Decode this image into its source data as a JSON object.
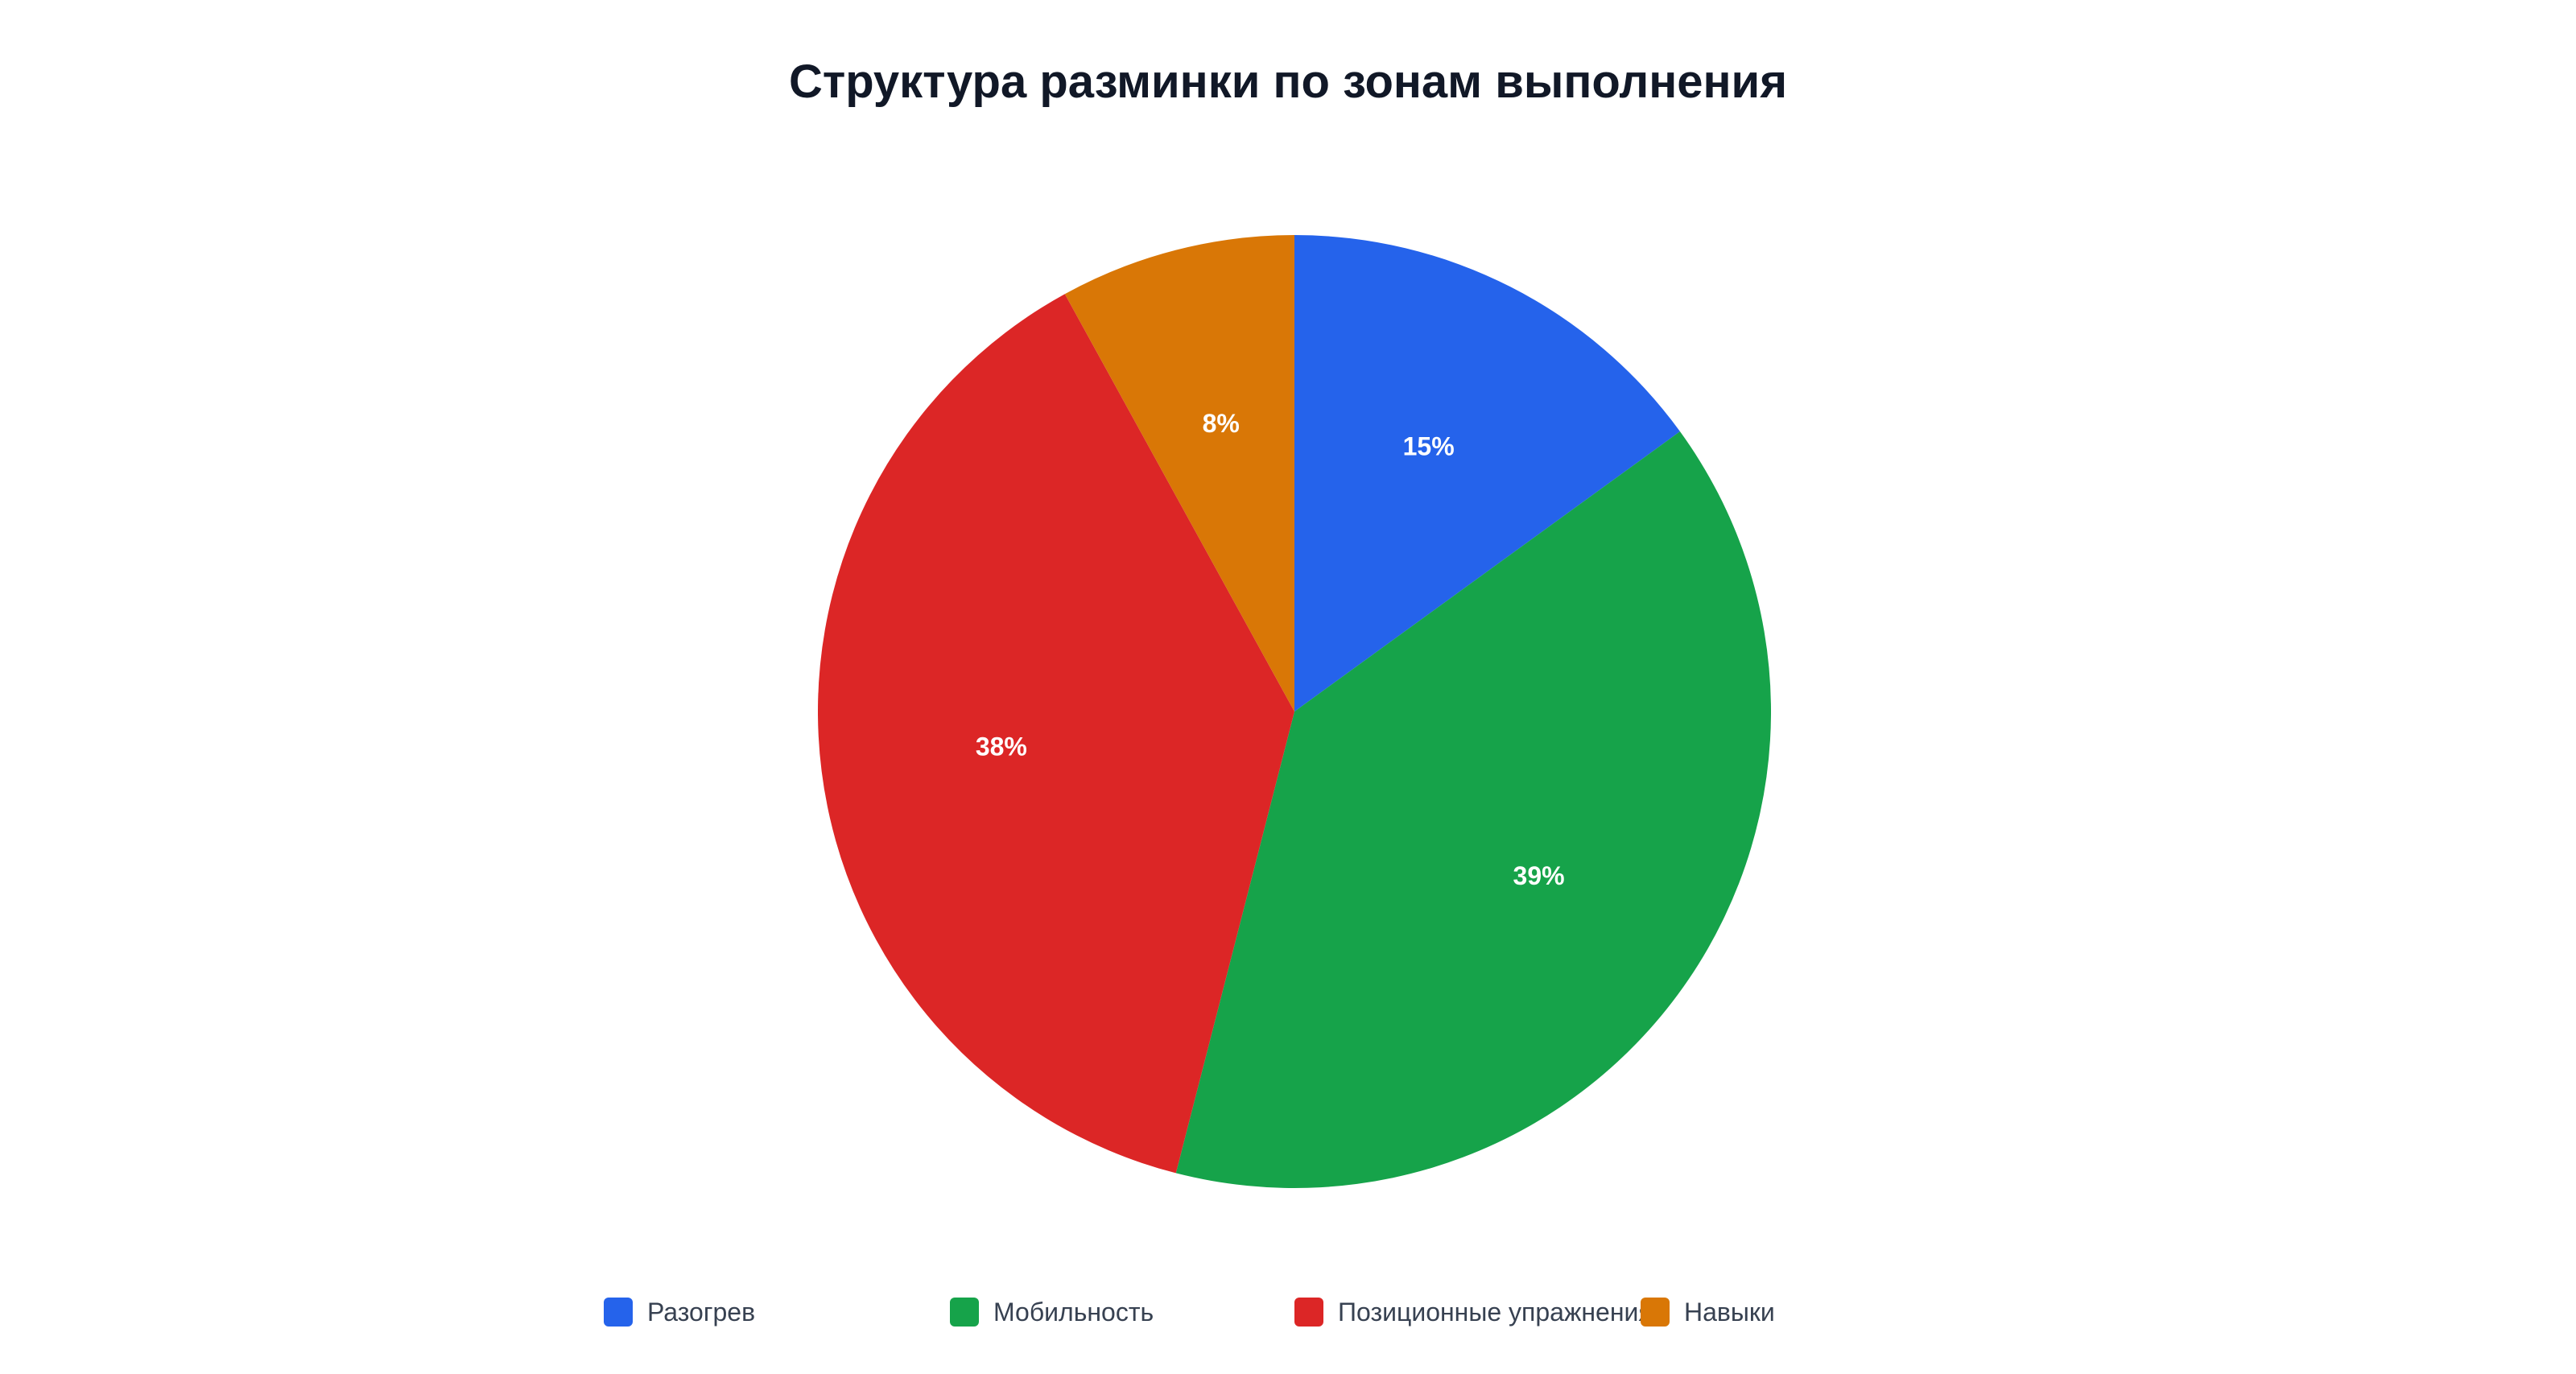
{
  "chart_data": {
    "type": "pie",
    "title": "Структура разминки по зонам выполнения",
    "categories": [
      "Разогрев",
      "Мобильность",
      "Позиционные упражнения",
      "Навыки"
    ],
    "values": [
      15,
      39,
      38,
      8
    ],
    "value_labels": [
      "15%",
      "39%",
      "38%",
      "8%"
    ],
    "colors": [
      "#2563eb",
      "#16a34a",
      "#dc2626",
      "#d97706"
    ],
    "legend_position": "bottom",
    "start_angle": "top, clockwise"
  },
  "legend": {
    "items": [
      {
        "label": "Разогрев",
        "color": "#2563eb"
      },
      {
        "label": "Мобильность",
        "color": "#16a34a"
      },
      {
        "label": "Позиционные упражнения",
        "color": "#dc2626"
      },
      {
        "label": "Навыки",
        "color": "#d97706"
      }
    ]
  }
}
